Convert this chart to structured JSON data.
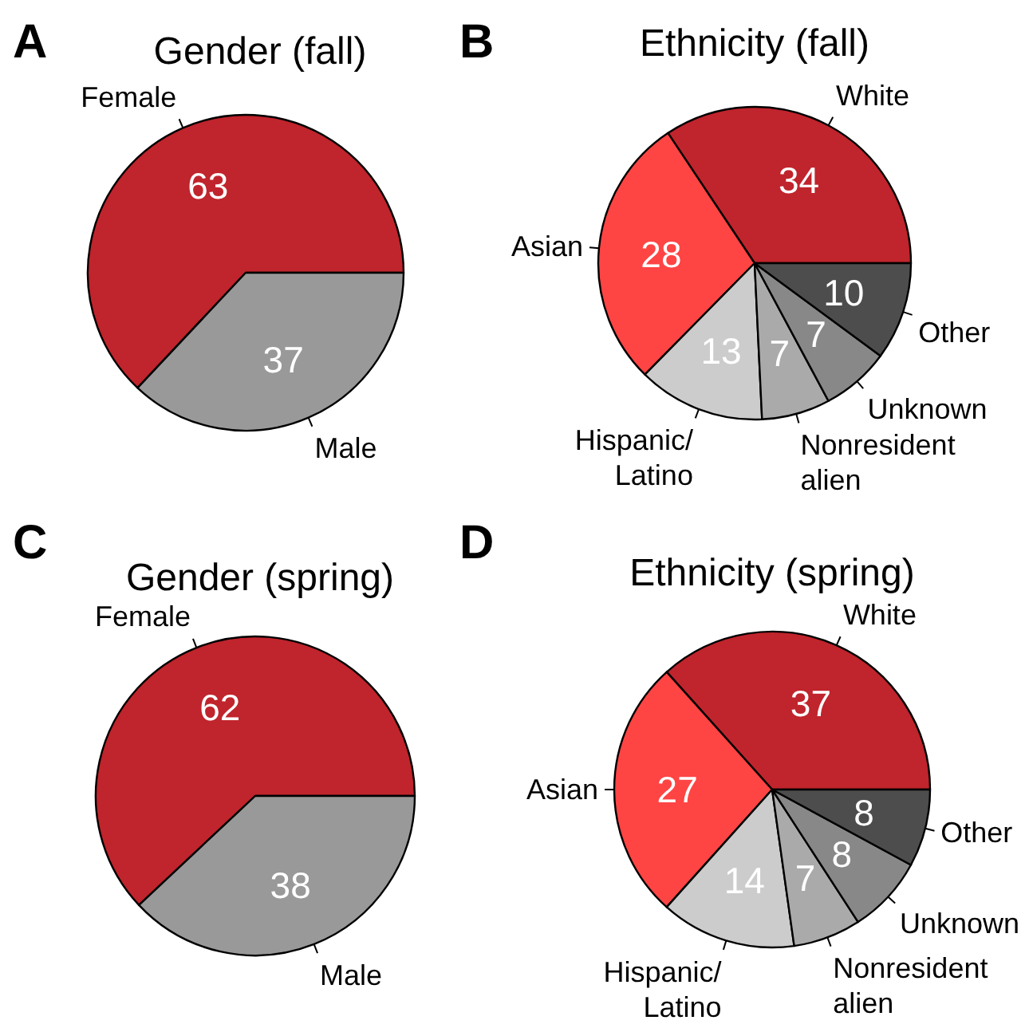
{
  "chart_data": [
    {
      "type": "pie",
      "title": "Gender (fall)",
      "annotations": [
        "A"
      ],
      "categories": [
        "Female",
        "Male"
      ],
      "values": [
        63,
        37
      ],
      "colors": [
        "#c0242c",
        "#999999"
      ],
      "data_labels": true
    },
    {
      "type": "pie",
      "title": "Ethnicity (fall)",
      "annotations": [
        "B"
      ],
      "categories": [
        "White",
        "Asian",
        "Hispanic/\nLatino",
        "Nonresident\nalien",
        "Unknown",
        "Other"
      ],
      "values": [
        34,
        28,
        13,
        7,
        7,
        10
      ],
      "colors": [
        "#c0242c",
        "#ff4444",
        "#cccccc",
        "#aaaaaa",
        "#888888",
        "#4d4d4d"
      ],
      "data_labels": true
    },
    {
      "type": "pie",
      "title": "Gender (spring)",
      "annotations": [
        "C"
      ],
      "categories": [
        "Female",
        "Male"
      ],
      "values": [
        62,
        38
      ],
      "colors": [
        "#c0242c",
        "#999999"
      ],
      "data_labels": true
    },
    {
      "type": "pie",
      "title": "Ethnicity (spring)",
      "annotations": [
        "D"
      ],
      "categories": [
        "White",
        "Asian",
        "Hispanic/\nLatino",
        "Nonresident\nalien",
        "Unknown",
        "Other"
      ],
      "values": [
        37,
        27,
        14,
        7,
        8,
        8
      ],
      "colors": [
        "#c0242c",
        "#ff4444",
        "#cccccc",
        "#aaaaaa",
        "#888888",
        "#4d4d4d"
      ],
      "data_labels": true
    }
  ]
}
